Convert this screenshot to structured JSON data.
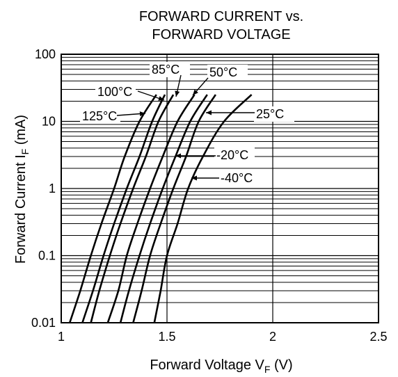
{
  "chart_data": {
    "type": "line",
    "title": "FORWARD CURRENT vs.\nFORWARD VOLTAGE",
    "title_lines": [
      "FORWARD CURRENT vs.",
      "FORWARD VOLTAGE"
    ],
    "xlabel": "Forward Voltage VF (V)",
    "xlabel_parts": {
      "main": "Forward Voltage V",
      "sub": "F",
      "tail": " (V)"
    },
    "ylabel": "Forward Current IF (mA)",
    "ylabel_parts": {
      "main": "Forward Current I",
      "sub": "F",
      "tail": " (mA)"
    },
    "x_scale": "linear",
    "y_scale": "log",
    "xlim": [
      1,
      2.5
    ],
    "ylim": [
      0.01,
      100
    ],
    "x_ticks": [
      1,
      1.5,
      2,
      2.5
    ],
    "x_tick_labels": [
      "1",
      "1.5",
      "2",
      "2.5"
    ],
    "y_ticks": [
      0.01,
      0.1,
      1,
      10,
      100
    ],
    "y_tick_labels": [
      "0.01",
      "0.1",
      "1",
      "10",
      "100"
    ],
    "grid": true,
    "series": [
      {
        "name": "125°C",
        "points": [
          [
            1.04,
            0.01
          ],
          [
            1.09,
            0.03
          ],
          [
            1.14,
            0.1
          ],
          [
            1.19,
            0.3
          ],
          [
            1.25,
            1
          ],
          [
            1.3,
            3
          ],
          [
            1.37,
            10
          ],
          [
            1.45,
            25
          ]
        ]
      },
      {
        "name": "100°C",
        "points": [
          [
            1.1,
            0.01
          ],
          [
            1.15,
            0.03
          ],
          [
            1.2,
            0.1
          ],
          [
            1.25,
            0.3
          ],
          [
            1.31,
            1
          ],
          [
            1.37,
            3
          ],
          [
            1.43,
            10
          ],
          [
            1.49,
            25
          ]
        ]
      },
      {
        "name": "85°C",
        "points": [
          [
            1.14,
            0.01
          ],
          [
            1.18,
            0.03
          ],
          [
            1.23,
            0.1
          ],
          [
            1.28,
            0.3
          ],
          [
            1.34,
            1
          ],
          [
            1.4,
            3
          ],
          [
            1.46,
            10
          ],
          [
            1.53,
            25
          ]
        ]
      },
      {
        "name": "50°C",
        "points": [
          [
            1.22,
            0.01
          ],
          [
            1.27,
            0.03
          ],
          [
            1.31,
            0.1
          ],
          [
            1.36,
            0.3
          ],
          [
            1.42,
            1
          ],
          [
            1.48,
            3
          ],
          [
            1.55,
            10
          ],
          [
            1.63,
            25
          ]
        ]
      },
      {
        "name": "25°C",
        "points": [
          [
            1.28,
            0.01
          ],
          [
            1.32,
            0.03
          ],
          [
            1.37,
            0.1
          ],
          [
            1.42,
            0.3
          ],
          [
            1.48,
            1
          ],
          [
            1.54,
            3
          ],
          [
            1.61,
            10
          ],
          [
            1.69,
            25
          ]
        ]
      },
      {
        "name": "-20°C",
        "points": [
          [
            1.34,
            0.01
          ],
          [
            1.38,
            0.03
          ],
          [
            1.42,
            0.1
          ],
          [
            1.47,
            0.3
          ],
          [
            1.53,
            1
          ],
          [
            1.59,
            3
          ],
          [
            1.65,
            10
          ],
          [
            1.73,
            25
          ]
        ]
      },
      {
        "name": "-40°C",
        "points": [
          [
            1.44,
            0.01
          ],
          [
            1.47,
            0.03
          ],
          [
            1.5,
            0.1
          ],
          [
            1.55,
            0.3
          ],
          [
            1.6,
            1
          ],
          [
            1.67,
            3
          ],
          [
            1.77,
            10
          ],
          [
            1.9,
            25
          ]
        ]
      }
    ]
  }
}
